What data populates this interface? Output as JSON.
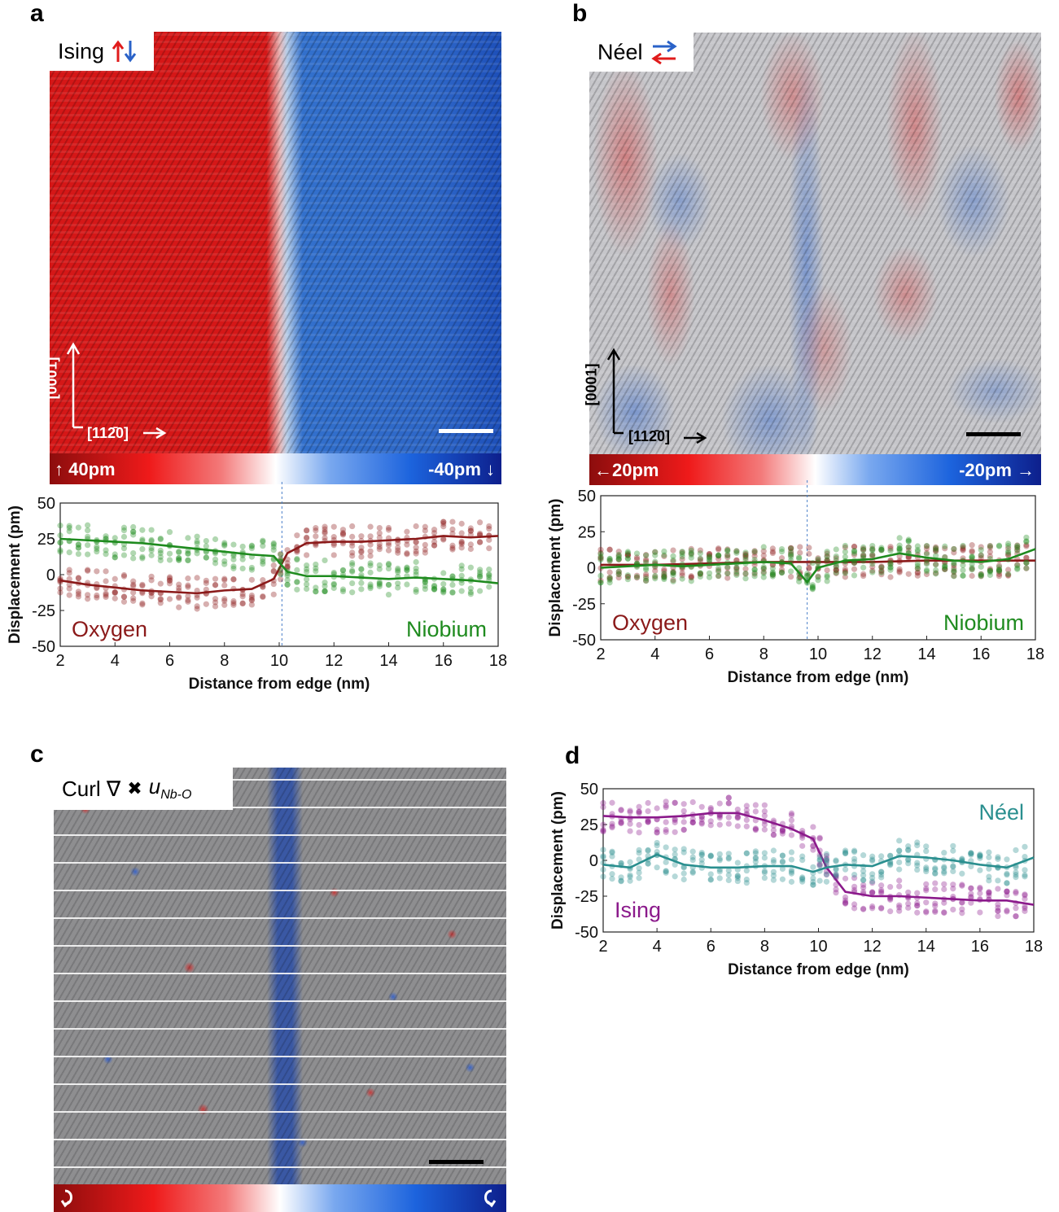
{
  "panels": {
    "a": {
      "letter": "a",
      "legend": "Ising",
      "colorbar_left": "↑ 40pm",
      "colorbar_right": "-40pm ↓",
      "dir_vertical": "[0001]",
      "dir_horizontal": "[112̄0]",
      "colors": {
        "positive": "#d21414",
        "negative": "#1f5fc8"
      }
    },
    "b": {
      "letter": "b",
      "legend": "Néel",
      "colorbar_left": "←20pm",
      "colorbar_right": "-20pm  →",
      "dir_vertical": "[0001]",
      "dir_horizontal": "[112̄0]"
    },
    "c": {
      "letter": "c",
      "legend_prefix": "Curl ∇",
      "legend_cross": "✖",
      "legend_var": "u",
      "legend_sub": "Nb-O"
    },
    "d": {
      "letter": "d"
    }
  },
  "chart_data": [
    {
      "id": "a-plot",
      "type": "scatter",
      "xlabel": "Distance from edge (nm)",
      "ylabel": "Displacement (pm)",
      "xlim": [
        2,
        18
      ],
      "ylim": [
        -50,
        50
      ],
      "xticks": [
        2,
        4,
        6,
        8,
        10,
        12,
        14,
        16,
        18
      ],
      "yticks": [
        50,
        25,
        0,
        -25,
        -50
      ],
      "boundary_x": 10.1,
      "annotations": [
        {
          "text": "Oxygen",
          "position": "bottom-left",
          "color": "#8b1a1a"
        },
        {
          "text": "Niobium",
          "position": "bottom-right",
          "color": "#1f8b1f"
        }
      ],
      "series": [
        {
          "name": "Oxygen",
          "color": "#8b1a1a",
          "x": [
            2,
            3,
            4,
            5,
            6,
            7,
            8,
            9,
            9.8,
            10.3,
            11,
            12,
            13,
            14,
            15,
            16,
            17,
            18
          ],
          "y": [
            -4,
            -7,
            -9,
            -11,
            -12,
            -13,
            -11,
            -10,
            -3,
            15,
            22,
            23,
            23,
            24,
            25,
            27,
            26,
            27
          ]
        },
        {
          "name": "Niobium",
          "color": "#1f8b1f",
          "x": [
            2,
            3,
            4,
            5,
            6,
            7,
            8,
            9,
            9.8,
            10.3,
            11,
            12,
            13,
            14,
            15,
            16,
            17,
            18
          ],
          "y": [
            25,
            24,
            23,
            22,
            20,
            18,
            16,
            14,
            13,
            2,
            -1,
            -1,
            -2,
            -3,
            -2,
            -3,
            -4,
            -6
          ]
        }
      ]
    },
    {
      "id": "b-plot",
      "type": "scatter",
      "xlabel": "Distance from edge (nm)",
      "ylabel": "Displacement (pm)",
      "xlim": [
        2,
        18
      ],
      "ylim": [
        -50,
        50
      ],
      "xticks": [
        2,
        4,
        6,
        8,
        10,
        12,
        14,
        16,
        18
      ],
      "yticks": [
        50,
        25,
        0,
        -25,
        -50
      ],
      "boundary_x": 9.6,
      "annotations": [
        {
          "text": "Oxygen",
          "position": "bottom-left",
          "color": "#8b1a1a"
        },
        {
          "text": "Niobium",
          "position": "bottom-right",
          "color": "#1f8b1f"
        }
      ],
      "series": [
        {
          "name": "Oxygen",
          "color": "#8b1a1a",
          "x": [
            2,
            4,
            6,
            8,
            10,
            12,
            14,
            16,
            18
          ],
          "y": [
            2,
            2,
            3,
            4,
            4,
            4,
            5,
            5,
            5
          ]
        },
        {
          "name": "Niobium",
          "color": "#1f8b1f",
          "x": [
            2,
            3,
            4,
            5,
            6,
            7,
            8,
            9,
            9.6,
            10,
            11,
            12,
            13,
            14,
            15,
            16,
            17,
            18
          ],
          "y": [
            0,
            1,
            2,
            1,
            2,
            3,
            4,
            3,
            -10,
            0,
            5,
            6,
            10,
            7,
            5,
            4,
            6,
            13
          ]
        }
      ]
    },
    {
      "id": "d-plot",
      "type": "scatter",
      "xlabel": "Distance from edge (nm)",
      "ylabel": "Displacement (pm)",
      "xlim": [
        2,
        18
      ],
      "ylim": [
        -50,
        50
      ],
      "xticks": [
        2,
        4,
        6,
        8,
        10,
        12,
        14,
        16,
        18
      ],
      "yticks": [
        50,
        25,
        0,
        -25,
        -50
      ],
      "annotations": [
        {
          "text": "Néel",
          "position": "top-right",
          "color": "#2a8f8f"
        },
        {
          "text": "Ising",
          "position": "bottom-left",
          "color": "#8b1a8b"
        }
      ],
      "series": [
        {
          "name": "Ising",
          "color": "#8b1a8b",
          "x": [
            2,
            3,
            4,
            5,
            6,
            7,
            8,
            9,
            9.8,
            10.3,
            11,
            12,
            13,
            14,
            15,
            16,
            17,
            18
          ],
          "y": [
            31,
            30,
            30,
            31,
            33,
            33,
            28,
            22,
            15,
            -5,
            -22,
            -25,
            -25,
            -26,
            -27,
            -28,
            -28,
            -31
          ]
        },
        {
          "name": "Néel",
          "color": "#2a8f8f",
          "x": [
            2,
            3,
            4,
            5,
            6,
            7,
            8,
            9,
            9.8,
            10.3,
            11,
            12,
            13,
            14,
            15,
            16,
            17,
            18
          ],
          "y": [
            -3,
            -5,
            4,
            -3,
            -5,
            -5,
            -4,
            -4,
            -8,
            -5,
            -3,
            -4,
            3,
            2,
            0,
            -3,
            -5,
            2
          ]
        }
      ]
    }
  ]
}
